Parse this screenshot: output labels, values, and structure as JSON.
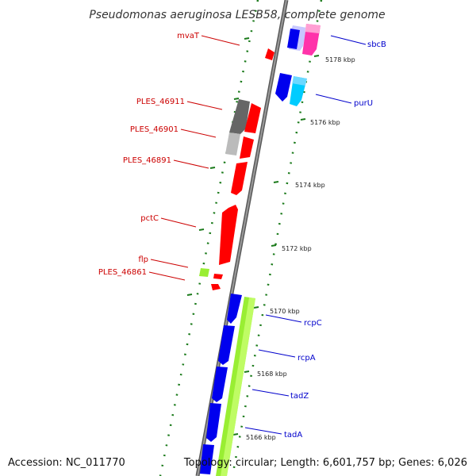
{
  "title": "Pseudomonas aeruginosa LESB58, complete genome",
  "accession": "Accession: NC_011770",
  "topology": "Topology: circular; Length: 6,601,757 bp; Genes: 6,026",
  "colors": {
    "backbone": "#808080",
    "tick": "#1a7a1a",
    "left_label": "#cc0000",
    "right_label": "#0000cc",
    "red_gene": "#ff0000",
    "blue_gene": "#0000ee",
    "cyan_gene": "#00ccff",
    "magenta_gene": "#ff33aa",
    "lavender_gene": "#c8c8ff",
    "green_gene": "#99ee33",
    "gray_gene": "#666666",
    "lightgray_gene": "#bbbbbb"
  },
  "left_labels": [
    "mvaT",
    "PLES_46911",
    "PLES_46901",
    "PLES_46891",
    "pctC",
    "flp",
    "PLES_46861"
  ],
  "right_labels": [
    "sbcB",
    "purU",
    "rcpC",
    "rcpA",
    "tadZ",
    "tadA"
  ],
  "kbp_marks": [
    "5178 kbp",
    "5176 kbp",
    "5174 kbp",
    "5172 kbp",
    "5170 kbp",
    "5168 kbp",
    "5166 kbp"
  ]
}
